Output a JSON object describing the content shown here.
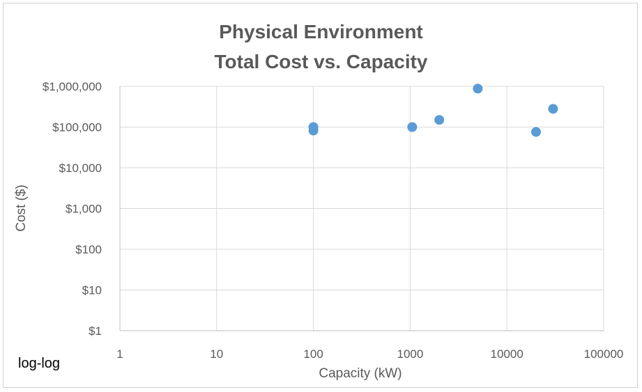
{
  "chart_data": {
    "type": "scatter",
    "title_line1": "Physical Environment",
    "title_line2": "Total Cost vs. Capacity",
    "xlabel": "Capacity (kW)",
    "ylabel": "Cost ($)",
    "x_scale": "log",
    "y_scale": "log",
    "xlim": [
      1,
      100000
    ],
    "ylim": [
      1,
      1000000
    ],
    "x_ticks": [
      {
        "value": 1,
        "label": "1"
      },
      {
        "value": 10,
        "label": "10"
      },
      {
        "value": 100,
        "label": "100"
      },
      {
        "value": 1000,
        "label": "1000"
      },
      {
        "value": 10000,
        "label": "10000"
      },
      {
        "value": 100000,
        "label": "100000"
      }
    ],
    "y_ticks": [
      {
        "value": 1,
        "label": "$1"
      },
      {
        "value": 10,
        "label": "$10"
      },
      {
        "value": 100,
        "label": "$100"
      },
      {
        "value": 1000,
        "label": "$1,000"
      },
      {
        "value": 10000,
        "label": "$10,000"
      },
      {
        "value": 100000,
        "label": "$100,000"
      },
      {
        "value": 1000000,
        "label": "$1,000,000"
      }
    ],
    "grid": true,
    "legend": "none",
    "marker_color": "#5b9bd5",
    "points": [
      {
        "x": 100,
        "y": 100000
      },
      {
        "x": 100,
        "y": 82000
      },
      {
        "x": 1050,
        "y": 100000
      },
      {
        "x": 2000,
        "y": 150000
      },
      {
        "x": 5000,
        "y": 880000
      },
      {
        "x": 20000,
        "y": 76000
      },
      {
        "x": 30000,
        "y": 280000
      }
    ],
    "annotation": "log-log"
  }
}
